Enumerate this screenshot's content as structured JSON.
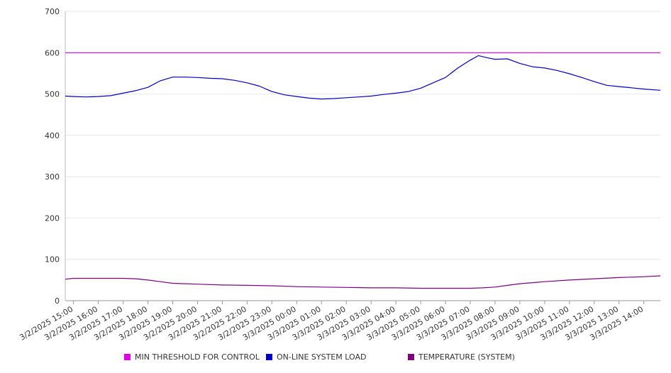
{
  "chart_data": {
    "type": "line",
    "title": "",
    "xlabel": "",
    "ylabel": "",
    "ylim": [
      0,
      700
    ],
    "yticks": [
      0,
      100,
      200,
      300,
      400,
      500,
      600,
      700
    ],
    "grid": true,
    "legend_position": "bottom",
    "x_start": "3/2/2025 14:40",
    "x_end": "3/3/2025 14:40",
    "x_ticks": [
      "3/2/2025 15:00",
      "3/2/2025 16:00",
      "3/2/2025 17:00",
      "3/2/2025 18:00",
      "3/2/2025 19:00",
      "3/2/2025 20:00",
      "3/2/2025 21:00",
      "3/2/2025 22:00",
      "3/2/2025 23:00",
      "3/3/2025 00:00",
      "3/3/2025 01:00",
      "3/3/2025 02:00",
      "3/3/2025 03:00",
      "3/3/2025 04:00",
      "3/3/2025 05:00",
      "3/3/2025 06:00",
      "3/3/2025 07:00",
      "3/3/2025 08:00",
      "3/3/2025 09:00",
      "3/3/2025 10:00",
      "3/3/2025 11:00",
      "3/3/2025 12:00",
      "3/3/2025 13:00",
      "3/3/2025 14:00"
    ],
    "series": [
      {
        "name": "MIN THRESHOLD FOR CONTROL",
        "color": "#e600e6",
        "points": [
          [
            "3/2/2025 14:40",
            600
          ],
          [
            "3/3/2025 14:40",
            600
          ]
        ]
      },
      {
        "name": "ON-LINE SYSTEM LOAD",
        "color": "#0000cc",
        "points": [
          [
            "3/2/2025 14:40",
            495
          ],
          [
            "3/2/2025 15:00",
            494
          ],
          [
            "3/2/2025 15:30",
            493
          ],
          [
            "3/2/2025 16:00",
            494
          ],
          [
            "3/2/2025 16:30",
            496
          ],
          [
            "3/2/2025 17:00",
            502
          ],
          [
            "3/2/2025 17:30",
            508
          ],
          [
            "3/2/2025 18:00",
            516
          ],
          [
            "3/2/2025 18:30",
            532
          ],
          [
            "3/2/2025 19:00",
            541
          ],
          [
            "3/2/2025 19:30",
            541
          ],
          [
            "3/2/2025 20:00",
            540
          ],
          [
            "3/2/2025 20:30",
            538
          ],
          [
            "3/2/2025 21:00",
            537
          ],
          [
            "3/2/2025 21:30",
            533
          ],
          [
            "3/2/2025 22:00",
            527
          ],
          [
            "3/2/2025 22:30",
            519
          ],
          [
            "3/2/2025 23:00",
            506
          ],
          [
            "3/2/2025 23:30",
            498
          ],
          [
            "3/3/2025 00:00",
            494
          ],
          [
            "3/3/2025 00:30",
            490
          ],
          [
            "3/3/2025 01:00",
            488
          ],
          [
            "3/3/2025 01:30",
            489
          ],
          [
            "3/3/2025 02:00",
            491
          ],
          [
            "3/3/2025 02:30",
            493
          ],
          [
            "3/3/2025 03:00",
            495
          ],
          [
            "3/3/2025 03:30",
            499
          ],
          [
            "3/3/2025 04:00",
            502
          ],
          [
            "3/3/2025 04:30",
            506
          ],
          [
            "3/3/2025 05:00",
            514
          ],
          [
            "3/3/2025 05:30",
            527
          ],
          [
            "3/3/2025 06:00",
            540
          ],
          [
            "3/3/2025 06:30",
            563
          ],
          [
            "3/3/2025 07:00",
            582
          ],
          [
            "3/3/2025 07:20",
            593
          ],
          [
            "3/3/2025 07:40",
            588
          ],
          [
            "3/3/2025 08:00",
            584
          ],
          [
            "3/3/2025 08:30",
            585
          ],
          [
            "3/3/2025 09:00",
            574
          ],
          [
            "3/3/2025 09:30",
            566
          ],
          [
            "3/3/2025 10:00",
            563
          ],
          [
            "3/3/2025 10:30",
            557
          ],
          [
            "3/3/2025 11:00",
            549
          ],
          [
            "3/3/2025 11:30",
            540
          ],
          [
            "3/3/2025 12:00",
            530
          ],
          [
            "3/3/2025 12:30",
            521
          ],
          [
            "3/3/2025 13:00",
            518
          ],
          [
            "3/3/2025 13:30",
            515
          ],
          [
            "3/3/2025 14:00",
            512
          ],
          [
            "3/3/2025 14:40",
            509
          ]
        ]
      },
      {
        "name": "TEMPERATURE (SYSTEM)",
        "color": "#800080",
        "points": [
          [
            "3/2/2025 14:40",
            52
          ],
          [
            "3/2/2025 15:00",
            54
          ],
          [
            "3/2/2025 16:00",
            54
          ],
          [
            "3/2/2025 17:00",
            54
          ],
          [
            "3/2/2025 17:30",
            53
          ],
          [
            "3/2/2025 18:00",
            50
          ],
          [
            "3/2/2025 18:30",
            46
          ],
          [
            "3/2/2025 19:00",
            42
          ],
          [
            "3/2/2025 20:00",
            40
          ],
          [
            "3/2/2025 21:00",
            38
          ],
          [
            "3/2/2025 22:00",
            37
          ],
          [
            "3/2/2025 23:00",
            36
          ],
          [
            "3/3/2025 00:00",
            34
          ],
          [
            "3/3/2025 01:00",
            33
          ],
          [
            "3/3/2025 02:00",
            32
          ],
          [
            "3/3/2025 03:00",
            31
          ],
          [
            "3/3/2025 04:00",
            31
          ],
          [
            "3/3/2025 05:00",
            30
          ],
          [
            "3/3/2025 06:00",
            30
          ],
          [
            "3/3/2025 07:00",
            30
          ],
          [
            "3/3/2025 07:30",
            31
          ],
          [
            "3/3/2025 08:00",
            33
          ],
          [
            "3/3/2025 08:30",
            37
          ],
          [
            "3/3/2025 09:00",
            41
          ],
          [
            "3/3/2025 10:00",
            46
          ],
          [
            "3/3/2025 11:00",
            50
          ],
          [
            "3/3/2025 12:00",
            53
          ],
          [
            "3/3/2025 13:00",
            56
          ],
          [
            "3/3/2025 14:00",
            58
          ],
          [
            "3/3/2025 14:40",
            60
          ]
        ]
      }
    ]
  }
}
